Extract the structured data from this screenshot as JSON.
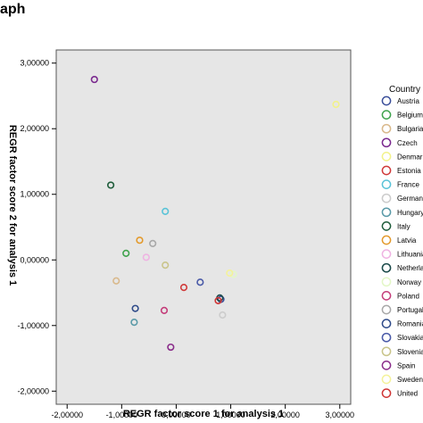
{
  "heading": "aph",
  "chart_data": {
    "type": "scatter",
    "xlabel": "REGR factor score   1 for analysis 1",
    "ylabel": "REGR factor score   2 for analysis 1",
    "xlim": [
      -2.2,
      3.2
    ],
    "ylim": [
      -2.2,
      3.2
    ],
    "xticks": [
      -2,
      -1,
      0,
      1,
      2,
      3
    ],
    "yticks": [
      -2,
      -1,
      0,
      1,
      2,
      3
    ],
    "xtick_labels": [
      "-2,00000",
      "-1,00000",
      "0,00000",
      "1,00000",
      "2,00000",
      "3,00000"
    ],
    "ytick_labels": [
      "-2,00000",
      "-1,00000",
      "0,00000",
      "1,00000",
      "2,00000",
      "3,00000"
    ],
    "grid": false,
    "plot_background": "#e6e6e6",
    "legend_title": "Country",
    "legend_position": "right",
    "series": [
      {
        "name": "Austria",
        "color": "#3b4f9a",
        "points": [
          [
            0.82,
            -0.6
          ]
        ]
      },
      {
        "name": "Belgium",
        "color": "#3fa34d",
        "points": [
          [
            -0.92,
            0.1
          ]
        ]
      },
      {
        "name": "Bulgaria",
        "color": "#d9b98c",
        "points": [
          [
            -1.1,
            -0.32
          ]
        ]
      },
      {
        "name": "Czech",
        "color": "#7b2a8f",
        "points": [
          [
            -1.5,
            2.75
          ]
        ]
      },
      {
        "name": "Denmark",
        "color": "#f2f28a",
        "points": [
          [
            2.93,
            2.37
          ]
        ]
      },
      {
        "name": "Estonia",
        "color": "#d03a3a",
        "points": [
          [
            0.14,
            -0.42
          ]
        ]
      },
      {
        "name": "France",
        "color": "#5ac3d8",
        "points": [
          [
            -0.2,
            0.74
          ]
        ]
      },
      {
        "name": "Germany",
        "color": "#cccccc",
        "points": [
          [
            0.85,
            -0.84
          ]
        ]
      },
      {
        "name": "Hungary",
        "color": "#5a9aa8",
        "points": [
          [
            -0.77,
            -0.95
          ]
        ]
      },
      {
        "name": "Italy",
        "color": "#1e5c3a",
        "points": [
          [
            -1.2,
            1.14
          ]
        ]
      },
      {
        "name": "Latvia",
        "color": "#e39a2c",
        "points": [
          [
            -0.67,
            0.3
          ]
        ]
      },
      {
        "name": "Lithuania",
        "color": "#efb3e2",
        "points": [
          [
            -0.55,
            0.04
          ]
        ]
      },
      {
        "name": "Netherlands",
        "color": "#1b4a4a",
        "points": [
          [
            0.8,
            -0.58
          ]
        ]
      },
      {
        "name": "Norway",
        "color": "#e3f7c7",
        "points": [
          [
            1.05,
            -0.22
          ]
        ]
      },
      {
        "name": "Poland",
        "color": "#c43d7a",
        "points": [
          [
            -0.22,
            -0.77
          ]
        ]
      },
      {
        "name": "Portugal",
        "color": "#a8a8a8",
        "points": [
          [
            -0.43,
            0.25
          ]
        ]
      },
      {
        "name": "Romania",
        "color": "#2f4b8a",
        "points": [
          [
            -0.75,
            -0.74
          ]
        ]
      },
      {
        "name": "Slovakia",
        "color": "#4a5aa8",
        "points": [
          [
            0.44,
            -0.34
          ]
        ]
      },
      {
        "name": "Slovenia",
        "color": "#c9c48a",
        "points": [
          [
            -0.2,
            -0.08
          ]
        ]
      },
      {
        "name": "Spain",
        "color": "#8a2c8a",
        "points": [
          [
            -0.1,
            -1.33
          ]
        ]
      },
      {
        "name": "Sweden",
        "color": "#f4f29a",
        "points": [
          [
            0.98,
            -0.2
          ]
        ]
      },
      {
        "name": "United",
        "color": "#cf3535",
        "points": [
          [
            0.77,
            -0.62
          ]
        ]
      }
    ]
  }
}
